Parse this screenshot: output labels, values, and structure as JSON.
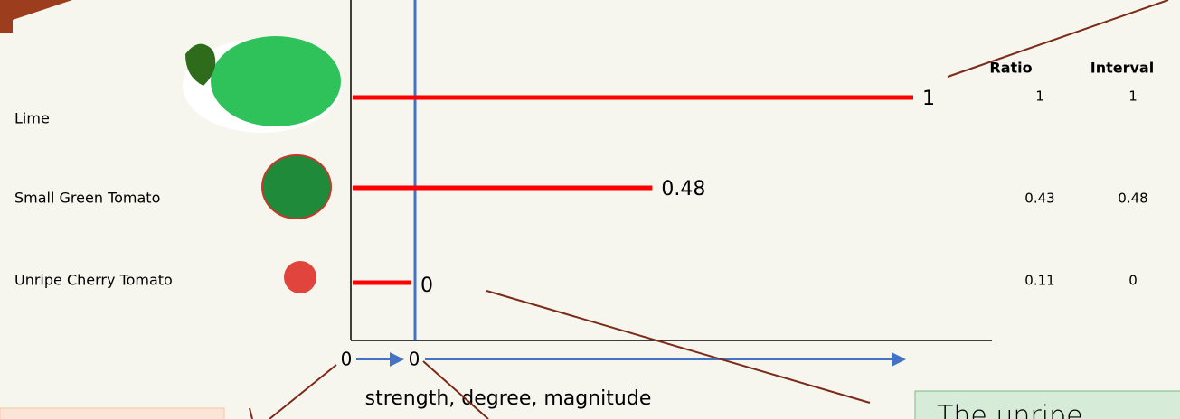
{
  "table": {
    "headers": [
      "Ratio",
      "Interval"
    ]
  },
  "rows": [
    {
      "label": "Lime",
      "value": 1,
      "ratio": 1,
      "interval": 1
    },
    {
      "label": "Small Green Tomato",
      "value": 0.48,
      "ratio": 0.43,
      "interval": 0.48
    },
    {
      "label": "Unripe Cherry Tomato",
      "value": 0,
      "ratio": 0.11,
      "interval": 0
    }
  ],
  "axis": {
    "origins": [
      0,
      0
    ],
    "label": "strength, degree, magnitude"
  },
  "callout": "The unripe"
}
